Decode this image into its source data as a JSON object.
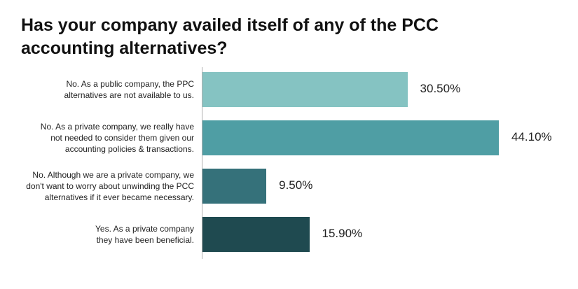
{
  "title_lines": [
    "Has your company availed itself of any of the PCC",
    "accounting alternatives?"
  ],
  "chart_data": {
    "type": "bar",
    "orientation": "horizontal",
    "title": "Has your company availed itself of any of the PCC accounting alternatives?",
    "categories": [
      [
        "No. As a public company, the PPC",
        "alternatives are not available to us."
      ],
      [
        "No. As a private company, we really have",
        "not needed to consider them given our",
        "accounting policies & transactions."
      ],
      [
        "No. Although we are a private company, we",
        "don't want to worry about unwinding the PCC",
        "alternatives if it ever became necessary."
      ],
      [
        "Yes. As a private company",
        "they have been beneficial."
      ]
    ],
    "values": [
      30.5,
      44.1,
      9.5,
      15.9
    ],
    "value_labels": [
      "30.50%",
      "44.10%",
      "9.50%",
      "15.90%"
    ],
    "colors": [
      "#85c3c2",
      "#4f9ea4",
      "#35717a",
      "#1f4a50"
    ],
    "xlim": [
      0,
      50
    ],
    "grid": false,
    "legend": "none"
  }
}
